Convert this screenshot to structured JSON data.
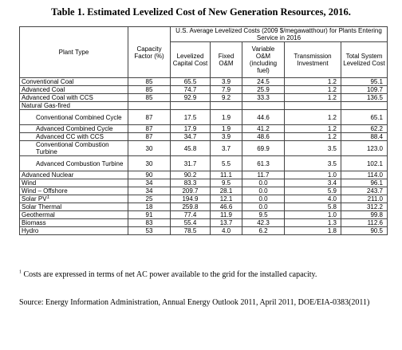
{
  "title": "Table 1. Estimated Levelized Cost of New Generation Resources, 2016.",
  "headers": {
    "plant_type": "Plant Type",
    "capacity_factor": "Capacity Factor (%)",
    "group": "U.S. Average Levelized Costs (2009 $/megawatthour) for Plants Entering Service in 2016",
    "levelized_capital": "Levelized Capital Cost",
    "fixed_om": "Fixed O&M",
    "variable_om": "Variable O&M (including fuel)",
    "transmission": "Transmission Investment",
    "total": "Total System Levelized Cost"
  },
  "rows": [
    {
      "name": "Conventional Coal",
      "cf": "85",
      "cap": "65.5",
      "fom": "3.9",
      "vom": "24.5",
      "trans": "1.2",
      "total": "95.1"
    },
    {
      "name": "Advanced Coal",
      "cf": "85",
      "cap": "74.7",
      "fom": "7.9",
      "vom": "25.9",
      "trans": "1.2",
      "total": "109.7"
    },
    {
      "name": "Advanced Coal with CCS",
      "cf": "85",
      "cap": "92.9",
      "fom": "9.2",
      "vom": "33.3",
      "trans": "1.2",
      "total": "136.5"
    },
    {
      "name": "Natural Gas-fired",
      "group": true
    },
    {
      "name": "Conventional Combined Cycle",
      "indent": true,
      "cf": "87",
      "cap": "17.5",
      "fom": "1.9",
      "vom": "44.6",
      "trans": "1.2",
      "total": "65.1"
    },
    {
      "name": "Advanced Combined Cycle",
      "indent": true,
      "cf": "87",
      "cap": "17.9",
      "fom": "1.9",
      "vom": "41.2",
      "trans": "1.2",
      "total": "62.2"
    },
    {
      "name": "Advanced CC with CCS",
      "indent": true,
      "cf": "87",
      "cap": "34.7",
      "fom": "3.9",
      "vom": "48.6",
      "trans": "1.2",
      "total": "88.4"
    },
    {
      "name": "Conventional Combustion Turbine",
      "indent": true,
      "cf": "30",
      "cap": "45.8",
      "fom": "3.7",
      "vom": "69.9",
      "trans": "3.5",
      "total": "123.0"
    },
    {
      "name": "Advanced Combustion Turbine",
      "indent": true,
      "cf": "30",
      "cap": "31.7",
      "fom": "5.5",
      "vom": "61.3",
      "trans": "3.5",
      "total": "102.1"
    },
    {
      "name": "Advanced Nuclear",
      "cf": "90",
      "cap": "90.2",
      "fom": "11.1",
      "vom": "11.7",
      "trans": "1.0",
      "total": "114.0"
    },
    {
      "name": "Wind",
      "cf": "34",
      "cap": "83.3",
      "fom": "9.5",
      "vom": "0.0",
      "trans": "3.4",
      "total": "96.1"
    },
    {
      "name": "Wind – Offshore",
      "cf": "34",
      "cap": "209.7",
      "fom": "28.1",
      "vom": "0.0",
      "trans": "5.9",
      "total": "243.7"
    },
    {
      "name": "Solar PV",
      "sup": "1",
      "cf": "25",
      "cap": "194.9",
      "fom": "12.1",
      "vom": "0.0",
      "trans": "4.0",
      "total": "211.0"
    },
    {
      "name": "Solar Thermal",
      "cf": "18",
      "cap": "259.8",
      "fom": "46.6",
      "vom": "0.0",
      "trans": "5.8",
      "total": "312.2"
    },
    {
      "name": "Geothermal",
      "cf": "91",
      "cap": "77.4",
      "fom": "11.9",
      "vom": "9.5",
      "trans": "1.0",
      "total": "99.8"
    },
    {
      "name": "Biomass",
      "cf": "83",
      "cap": "55.4",
      "fom": "13.7",
      "vom": "42.3",
      "trans": "1.3",
      "total": "112.6"
    },
    {
      "name": "Hydro",
      "cf": "53",
      "cap": "78.5",
      "fom": "4.0",
      "vom": "6.2",
      "trans": "1.8",
      "total": "90.5"
    }
  ],
  "footnote": {
    "marker": "1",
    "text": "Costs are expressed in terms of net AC power available to the grid for the installed capacity."
  },
  "source": "Source:  Energy Information Administration, Annual Energy Outlook 2011, April 2011, DOE/EIA-0383(2011)"
}
